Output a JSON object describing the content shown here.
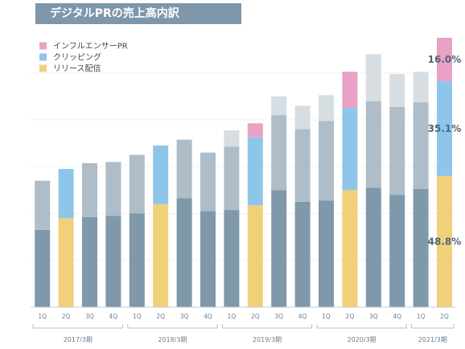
{
  "chart_data": {
    "type": "bar",
    "stacked": true,
    "title": "デジタルPRの売上高内訳",
    "categories": [
      "1Q",
      "2Q",
      "3Q",
      "4Q",
      "1Q",
      "2Q",
      "3Q",
      "4Q",
      "1Q",
      "2Q",
      "3Q",
      "4Q",
      "1Q",
      "2Q",
      "3Q",
      "4Q",
      "1Q",
      "2Q"
    ],
    "periods": [
      {
        "label": "2017/3期",
        "start": 0,
        "end": 3
      },
      {
        "label": "2018/3期",
        "start": 4,
        "end": 7
      },
      {
        "label": "2019/3期",
        "start": 8,
        "end": 11
      },
      {
        "label": "2020/3期",
        "start": 12,
        "end": 15
      },
      {
        "label": "2021/3期",
        "start": 16,
        "end": 17
      }
    ],
    "legend": [
      {
        "label": "インフルエンサーPR",
        "color": "#e9a1c6"
      },
      {
        "label": "クリッピング",
        "color": "#8ec6ea"
      },
      {
        "label": "リリース配信",
        "color": "#f1d07a"
      }
    ],
    "legend_position": "top-left",
    "colors": {
      "release_highlight": "#f1d07a",
      "clipping_highlight": "#8ec6ea",
      "influencer_highlight": "#e9a1c6",
      "release_base": "#7f98aa",
      "clipping_base": "#aebdc8",
      "influencer_base": "#d6dee4"
    },
    "highlighted_bars": [
      1,
      5,
      9,
      13,
      17
    ],
    "ylim": [
      0,
      115
    ],
    "grid": true,
    "series": [
      {
        "name": "リリース配信",
        "values": [
          33,
          38,
          38.5,
          39,
          40,
          44,
          46.5,
          41,
          41.5,
          43.5,
          50,
          45,
          45.5,
          50,
          51,
          48,
          50.5,
          56
        ]
      },
      {
        "name": "クリッピング",
        "values": [
          21,
          21,
          23,
          23,
          25,
          25,
          25,
          25,
          27,
          29,
          32,
          31,
          34,
          35,
          37,
          37.5,
          37,
          40.5
        ]
      },
      {
        "name": "インフルエンサーPR",
        "values": [
          0,
          0,
          0,
          0,
          0,
          0,
          0,
          0,
          7,
          6,
          8,
          10,
          11,
          15.5,
          20,
          14,
          13,
          18.5
        ]
      }
    ],
    "annotations": [
      {
        "bar": 17,
        "series": "インフルエンサーPR",
        "text": "16.0%"
      },
      {
        "bar": 17,
        "series": "クリッピング",
        "text": "35.1%"
      },
      {
        "bar": 17,
        "series": "リリース配信",
        "text": "48.8%"
      }
    ]
  }
}
